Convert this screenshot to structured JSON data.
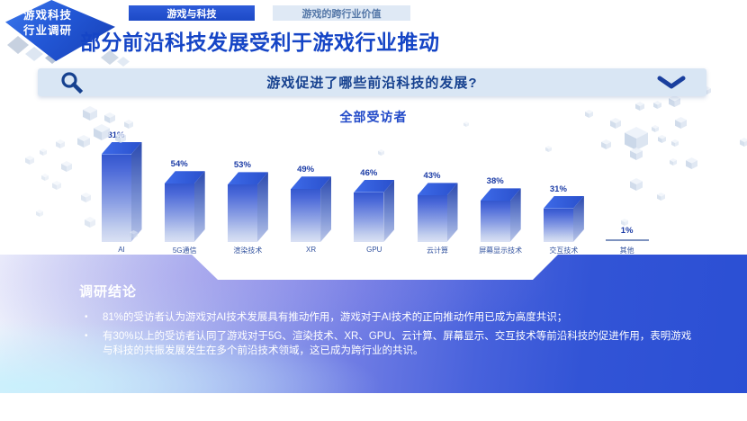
{
  "badge": {
    "line1": "游戏科技",
    "line2": "行业调研"
  },
  "tabs": [
    {
      "label": "游戏与科技",
      "active": true
    },
    {
      "label": "游戏的跨行业价值",
      "active": false
    }
  ],
  "page_title": "部分前沿科技发展受利于游戏行业推动",
  "question_bar": {
    "icon": "magnifier-icon",
    "label": "游戏促进了哪些前沿科技的发展?",
    "collapse_icon": "chevron-down-icon"
  },
  "chart_data": {
    "type": "bar",
    "style": "3d-column",
    "title": "全部受访者",
    "categories": [
      "AI",
      "5G通信",
      "渲染技术",
      "XR",
      "GPU",
      "云计算",
      "屏幕显示技术",
      "交互技术",
      "其他"
    ],
    "values": [
      81,
      54,
      53,
      49,
      46,
      43,
      38,
      31,
      1
    ],
    "unit": "%",
    "ylim": [
      0,
      100
    ],
    "grid": false,
    "legend": "none"
  },
  "conclusion": {
    "heading": "调研结论",
    "bullets": [
      "81%的受访者认为游戏对AI技术发展具有推动作用，游戏对于AI技术的正向推动作用已成为高度共识；",
      "有30%以上的受访者认同了游戏对于5G、渲染技术、XR、GPU、云计算、屏幕显示、交互技术等前沿科技的促进作用，表明游戏与科技的共振发展发生在多个前沿技术领域，这已成为跨行业的共识。"
    ]
  },
  "colors": {
    "accent": "#1545c6",
    "tab_active_bg": "#2250d0",
    "banner_bg": "#d9e6f4",
    "bar_top": "#2f5ad8",
    "bar_front_top": "#3457ce",
    "bar_front_bottom": "#dae1f4",
    "panel_right": "#2b4fd4",
    "label_blue": "#1c3ca6"
  }
}
